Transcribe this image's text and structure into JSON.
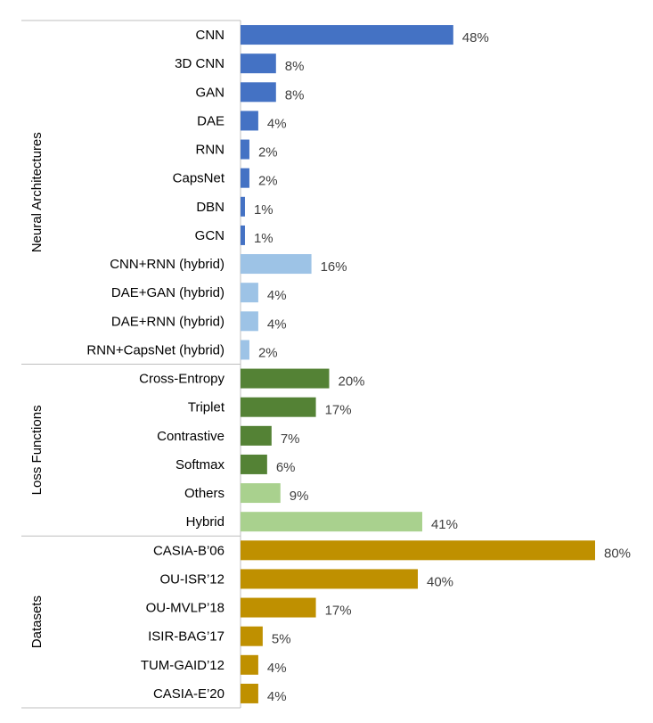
{
  "chart_data": {
    "type": "bar",
    "orientation": "horizontal",
    "grid": false,
    "xlim": [
      0,
      80
    ],
    "groups": [
      {
        "name": "Neural Architectures",
        "categories": [
          "CNN",
          "3D CNN",
          "GAN",
          "DAE",
          "RNN",
          "CapsNet",
          "DBN",
          "GCN",
          "CNN+RNN (hybrid)",
          "DAE+GAN (hybrid)",
          "DAE+RNN (hybrid)",
          "RNN+CapsNet (hybrid)"
        ],
        "values": [
          48,
          8,
          8,
          4,
          2,
          2,
          1,
          1,
          16,
          4,
          4,
          2
        ],
        "labels": [
          "48%",
          "8%",
          "8%",
          "4%",
          "2%",
          "2%",
          "1%",
          "1%",
          "16%",
          "4%",
          "4%",
          "2%"
        ],
        "colors": [
          "#4472c4",
          "#4472c4",
          "#4472c4",
          "#4472c4",
          "#4472c4",
          "#4472c4",
          "#4472c4",
          "#4472c4",
          "#9dc3e6",
          "#9dc3e6",
          "#9dc3e6",
          "#9dc3e6"
        ]
      },
      {
        "name": "Loss Functions",
        "categories": [
          "Cross-Entropy",
          "Triplet",
          "Contrastive",
          "Softmax",
          "Others",
          "Hybrid"
        ],
        "values": [
          20,
          17,
          7,
          6,
          9,
          41
        ],
        "labels": [
          "20%",
          "17%",
          "7%",
          "6%",
          "9%",
          "41%"
        ],
        "colors": [
          "#548235",
          "#548235",
          "#548235",
          "#548235",
          "#a9d18e",
          "#a9d18e"
        ]
      },
      {
        "name": "Datasets",
        "categories": [
          "CASIA-B’06",
          "OU-ISR’12",
          "OU-MVLP’18",
          "ISIR-BAG’17",
          "TUM-GAID’12",
          "CASIA-E’20"
        ],
        "values": [
          80,
          40,
          17,
          5,
          4,
          4
        ],
        "labels": [
          "80%",
          "40%",
          "17%",
          "5%",
          "4%",
          "4%"
        ],
        "colors": [
          "#bf9000",
          "#bf9000",
          "#bf9000",
          "#bf9000",
          "#bf9000",
          "#bf9000"
        ]
      }
    ]
  }
}
